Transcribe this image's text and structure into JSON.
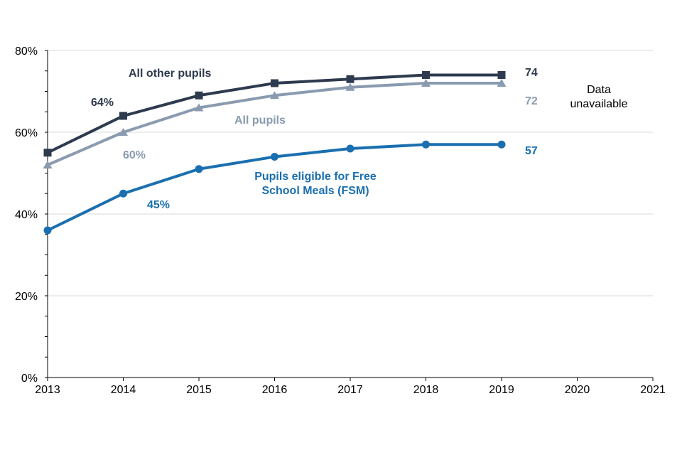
{
  "chart_data": {
    "type": "line",
    "title": "",
    "xlabel": "",
    "ylabel": "",
    "x": [
      2013,
      2014,
      2015,
      2016,
      2017,
      2018,
      2019
    ],
    "x_ticks": [
      "2013",
      "2014",
      "2015",
      "2016",
      "2017",
      "2018",
      "2019",
      "2020",
      "2021"
    ],
    "xlim": [
      2013,
      2021
    ],
    "ylim": [
      0,
      80
    ],
    "y_ticks": [
      "0%",
      "20%",
      "40%",
      "60%",
      "80%"
    ],
    "y_tick_values": [
      0,
      20,
      40,
      60,
      80
    ],
    "grid": true,
    "series": [
      {
        "name": "All other pupils",
        "color": "#2e3a4e",
        "marker": "square",
        "values": [
          55,
          64,
          69,
          72,
          73,
          74,
          74
        ]
      },
      {
        "name": "All pupils",
        "color": "#8a9bb0",
        "marker": "triangle",
        "values": [
          52,
          60,
          66,
          69,
          71,
          72,
          72
        ]
      },
      {
        "name": "Pupils eligible for Free School Meals (FSM)",
        "color": "#1a6fb0",
        "marker": "circle",
        "values": [
          36,
          45,
          51,
          54,
          56,
          57,
          57
        ]
      }
    ],
    "annotations": {
      "series_labels": [
        {
          "series": 0,
          "lines": [
            "All other pupils"
          ]
        },
        {
          "series": 1,
          "lines": [
            "All pupils"
          ]
        },
        {
          "series": 2,
          "lines": [
            "Pupils eligible for Free",
            "School Meals (FSM)"
          ]
        }
      ],
      "point_labels": [
        {
          "series": 0,
          "text": "64%"
        },
        {
          "series": 1,
          "text": "60%"
        },
        {
          "series": 2,
          "text": "45%"
        }
      ],
      "end_labels": [
        {
          "series": 0,
          "text": "74"
        },
        {
          "series": 1,
          "text": "72"
        },
        {
          "series": 2,
          "text": "57"
        }
      ],
      "note": [
        "Data",
        "unavailable"
      ]
    }
  }
}
